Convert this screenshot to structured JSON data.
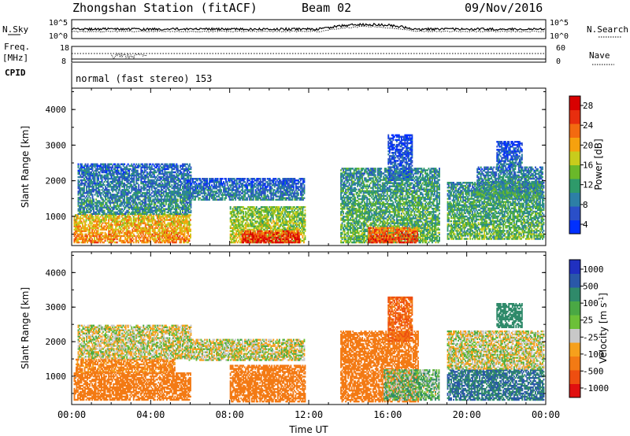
{
  "header": {
    "station": "Zhongshan Station (fitACF)",
    "beam": "Beam 02",
    "date": "09/Nov/2016"
  },
  "noise_panel": {
    "left_label": "N.Sky",
    "right_label": "N.Search",
    "left_ticks": [
      "10^5",
      "10^0"
    ],
    "right_ticks": [
      "10^5",
      "10^0"
    ]
  },
  "freq_panel": {
    "left_label_1": "Freq.",
    "left_label_2": "[MHz]",
    "right_label": "Nave",
    "left_ticks": [
      "18",
      "8"
    ],
    "right_ticks": [
      "60",
      "0"
    ]
  },
  "cpid_panel": {
    "label": "CPID",
    "text": "normal (fast stereo) 153"
  },
  "axes": {
    "ylabel": "Slant Range [km]",
    "xlabel": "Time UT",
    "y_ticks": [
      "4000",
      "3000",
      "2000",
      "1000"
    ],
    "x_ticks": [
      "00:00",
      "04:00",
      "08:00",
      "12:00",
      "16:00",
      "20:00",
      "00:00"
    ]
  },
  "power_scale": {
    "label": "Power [dB]",
    "ticks": [
      "28",
      "24",
      "20",
      "16",
      "12",
      "8",
      "4"
    ],
    "colors": [
      "#0030ff",
      "#2a4fc8",
      "#2d7fa6",
      "#2e9a6a",
      "#6ab82a",
      "#c8cc1c",
      "#f6a10e",
      "#f36a10",
      "#e82e0e",
      "#d80000"
    ]
  },
  "velocity_scale": {
    "label": "Velocity [m s",
    "label_sup": "-1",
    "label_close": "]",
    "ticks": [
      "1000",
      "500",
      "100",
      "25",
      "-25",
      "-100",
      "-500",
      "-1000"
    ],
    "colors": [
      "#2030c0",
      "#2a58a8",
      "#2f8a6a",
      "#4aa844",
      "#6cc038",
      "#c8c8c8",
      "#f6a01c",
      "#f37a14",
      "#ee4e10",
      "#e01010"
    ]
  },
  "chart_data": [
    {
      "type": "heatmap",
      "title": "Power",
      "xlabel": "Time UT",
      "ylabel": "Slant Range [km]",
      "x_range_hours": [
        0,
        24
      ],
      "ylim": [
        180,
        4600
      ],
      "colorbar_label": "Power [dB]",
      "colorbar_ticks": [
        4,
        8,
        12,
        16,
        20,
        24,
        28
      ],
      "colorbar_range": [
        2,
        30
      ],
      "regions": [
        {
          "t0": 0.1,
          "t1": 6.0,
          "r0": 250,
          "r1": 1050,
          "v": 20
        },
        {
          "t0": 0.3,
          "t1": 6.0,
          "r0": 1050,
          "r1": 2450,
          "v": 9
        },
        {
          "t0": 5.8,
          "t1": 11.8,
          "r0": 1450,
          "r1": 2050,
          "v": 8
        },
        {
          "t0": 8.0,
          "t1": 11.8,
          "r0": 250,
          "r1": 1250,
          "v": 16
        },
        {
          "t0": 8.6,
          "t1": 11.5,
          "r0": 250,
          "r1": 600,
          "v": 26
        },
        {
          "t0": 13.6,
          "t1": 18.6,
          "r0": 250,
          "r1": 2350,
          "v": 12
        },
        {
          "t0": 15.0,
          "t1": 17.5,
          "r0": 250,
          "r1": 700,
          "v": 24
        },
        {
          "t0": 16.0,
          "t1": 17.2,
          "r0": 2000,
          "r1": 3300,
          "v": 6
        },
        {
          "t0": 19.0,
          "t1": 23.9,
          "r0": 350,
          "r1": 1950,
          "v": 12
        },
        {
          "t0": 20.5,
          "t1": 23.8,
          "r0": 1500,
          "r1": 2400,
          "v": 10
        },
        {
          "t0": 21.5,
          "t1": 22.8,
          "r0": 2400,
          "r1": 3100,
          "v": 6
        }
      ]
    },
    {
      "type": "heatmap",
      "title": "Velocity",
      "xlabel": "Time UT",
      "ylabel": "Slant Range [km]",
      "x_range_hours": [
        0,
        24
      ],
      "ylim": [
        180,
        4600
      ],
      "colorbar_label": "Velocity [m s-1]",
      "colorbar_ticks": [
        -1000,
        -500,
        -100,
        -25,
        25,
        100,
        500,
        1000
      ],
      "regions": [
        {
          "t0": 0.1,
          "t1": 6.0,
          "r0": 300,
          "r1": 1100,
          "v": -200
        },
        {
          "t0": 0.2,
          "t1": 5.2,
          "r0": 1100,
          "r1": 1500,
          "v": -150
        },
        {
          "t0": 0.3,
          "t1": 6.0,
          "r0": 1500,
          "r1": 2450,
          "v": 0
        },
        {
          "t0": 5.8,
          "t1": 11.8,
          "r0": 1450,
          "r1": 2050,
          "v": 0
        },
        {
          "t0": 8.0,
          "t1": 11.8,
          "r0": 250,
          "r1": 1300,
          "v": -200
        },
        {
          "t0": 13.6,
          "t1": 17.5,
          "r0": 250,
          "r1": 2300,
          "v": -200
        },
        {
          "t0": 15.8,
          "t1": 18.6,
          "r0": 300,
          "r1": 1200,
          "v": 60
        },
        {
          "t0": 16.0,
          "t1": 17.2,
          "r0": 2000,
          "r1": 3300,
          "v": -300
        },
        {
          "t0": 19.0,
          "t1": 23.9,
          "r0": 300,
          "r1": 1200,
          "v": 300
        },
        {
          "t0": 19.0,
          "t1": 23.9,
          "r0": 1200,
          "r1": 2300,
          "v": 0
        },
        {
          "t0": 21.5,
          "t1": 22.8,
          "r0": 2400,
          "r1": 3100,
          "v": 200
        }
      ]
    }
  ]
}
